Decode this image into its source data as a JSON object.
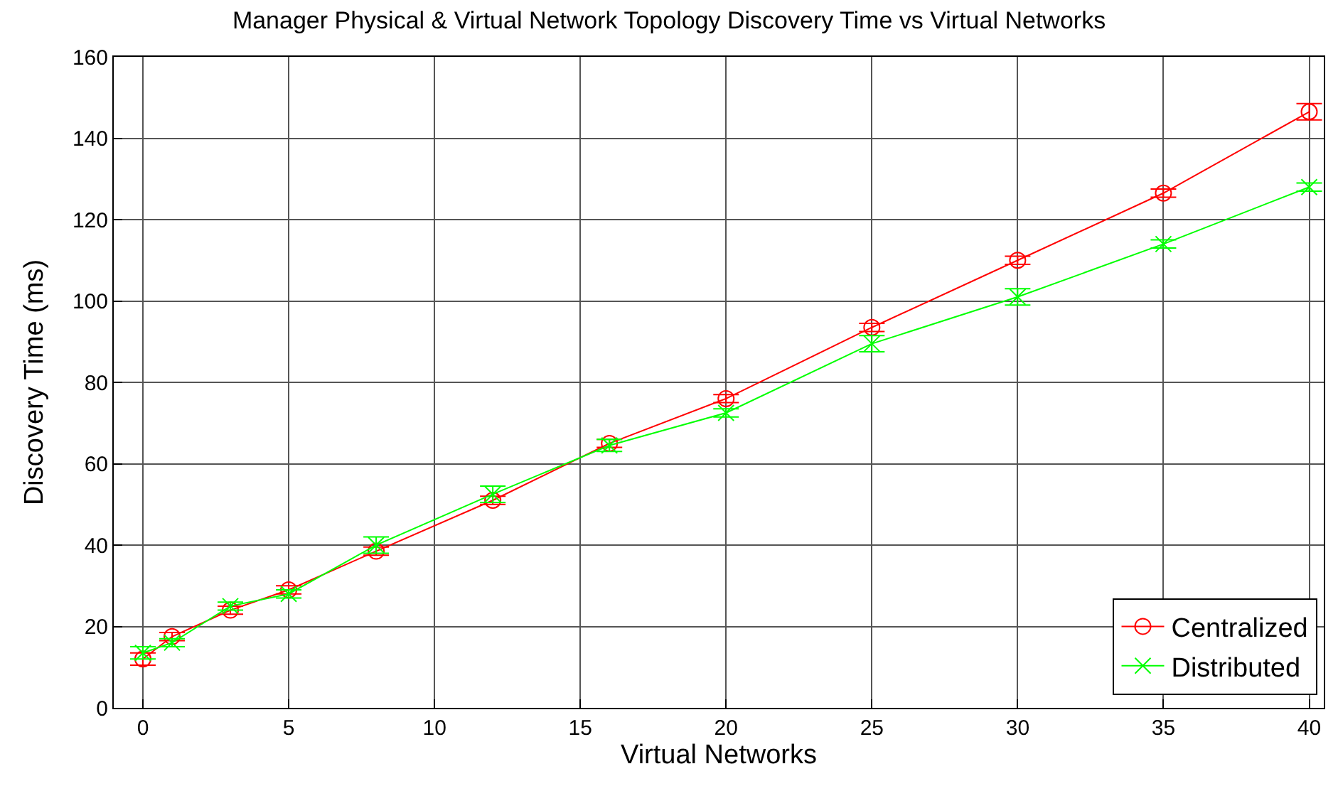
{
  "chart_data": {
    "type": "line",
    "title": "Manager Physical & Virtual Network Topology Discovery Time vs Virtual Networks",
    "xlabel": "Virtual Networks",
    "ylabel": "Discovery Time (ms)",
    "x": [
      0,
      1,
      3,
      5,
      8,
      12,
      16,
      20,
      25,
      30,
      35,
      40
    ],
    "series": [
      {
        "name": "Centralized",
        "color": "#ff0000",
        "marker": "circle",
        "values": [
          12,
          17.5,
          24,
          29,
          38.5,
          51,
          65,
          76,
          93.5,
          110,
          126.5,
          146.5
        ],
        "errors": [
          1.5,
          1,
          1,
          1,
          1,
          1,
          1,
          1,
          1,
          1,
          1,
          2
        ]
      },
      {
        "name": "Distributed",
        "color": "#00ff00",
        "marker": "cross",
        "values": [
          13.5,
          16,
          25,
          28,
          40,
          52.5,
          64.5,
          72.5,
          89.5,
          101,
          114,
          128
        ],
        "errors": [
          1.5,
          1,
          1,
          1,
          2,
          2,
          1.5,
          1,
          2,
          2,
          1,
          1
        ]
      }
    ],
    "xlim": [
      -1,
      40.5
    ],
    "xticks": [
      0,
      5,
      10,
      15,
      20,
      25,
      30,
      35,
      40
    ],
    "ylim": [
      0,
      160
    ],
    "yticks": [
      0,
      20,
      40,
      60,
      80,
      100,
      120,
      140,
      160
    ],
    "grid": true,
    "legend": "bottom right"
  }
}
